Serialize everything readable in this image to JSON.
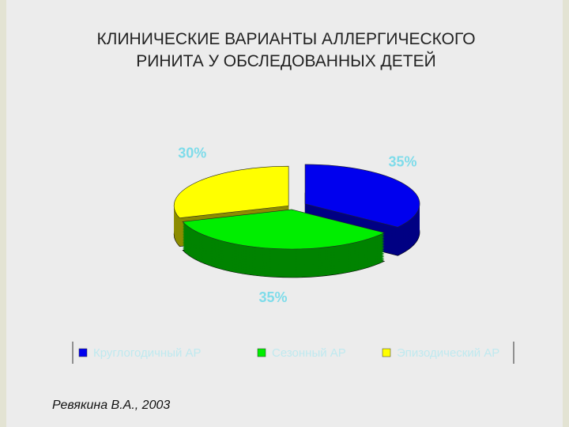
{
  "chart_data": {
    "type": "pie",
    "title": "КЛИНИЧЕСКИЕ ВАРИАНТЫ АЛЛЕРГИЧЕСКОГО РИНИТА У ОБСЛЕДОВАННЫХ ДЕТЕЙ",
    "categories": [
      "Круглогодичный АР",
      "Сезонный АР",
      "Эпизодический АР"
    ],
    "values": [
      35,
      35,
      30
    ],
    "value_labels": [
      "35%",
      "35%",
      "30%"
    ],
    "colors": [
      "#0000ee",
      "#00ee00",
      "#ffff00"
    ],
    "legend": "bottom"
  },
  "author": "Ревякина В.А., 2003"
}
